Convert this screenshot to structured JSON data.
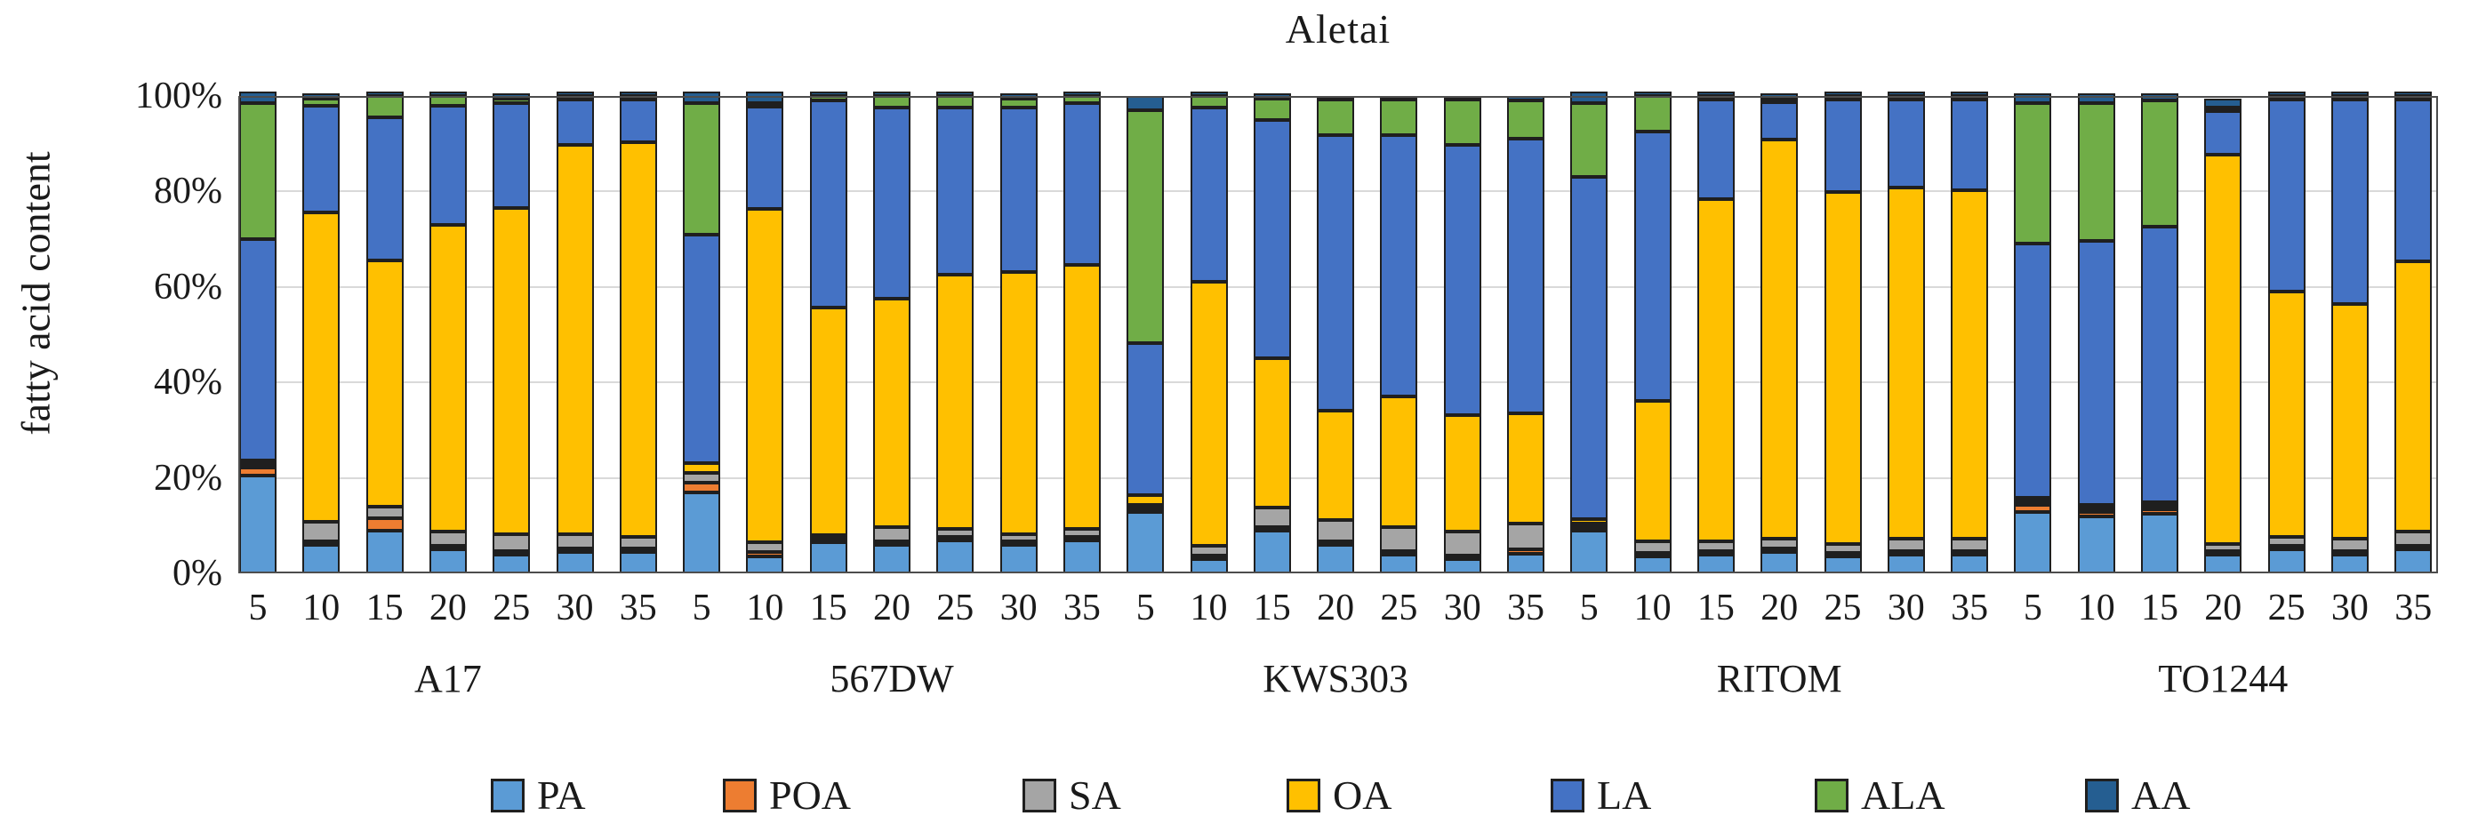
{
  "chart_data": {
    "type": "bar",
    "stacked": true,
    "percent_stacked": true,
    "title": "Aletai",
    "xlabel": "",
    "ylabel": "fatty acid content",
    "ylim": [
      0,
      100
    ],
    "y_ticks": [
      0,
      20,
      40,
      60,
      80,
      100
    ],
    "y_tick_labels": [
      "0%",
      "20%",
      "40%",
      "60%",
      "80%",
      "100%"
    ],
    "grid": true,
    "legend_position": "bottom",
    "groups": [
      {
        "label": "A17",
        "days": [
          "5",
          "10",
          "15",
          "20",
          "25",
          "30",
          "35"
        ]
      },
      {
        "label": "567DW",
        "days": [
          "5",
          "10",
          "15",
          "20",
          "25",
          "30",
          "35"
        ]
      },
      {
        "label": "KWS303",
        "days": [
          "5",
          "10",
          "15",
          "20",
          "25",
          "30",
          "35"
        ]
      },
      {
        "label": "RITOM",
        "days": [
          "5",
          "10",
          "15",
          "20",
          "25",
          "30",
          "35"
        ]
      },
      {
        "label": "TO1244",
        "days": [
          "5",
          "10",
          "15",
          "20",
          "25",
          "30",
          "35"
        ]
      }
    ],
    "series": [
      {
        "name": "PA",
        "color": "#5B9BD5",
        "values": [
          20.5,
          6,
          9,
          5,
          4,
          4.5,
          4.5,
          17,
          3.5,
          6.5,
          6,
          7,
          6,
          7,
          13,
          3,
          9,
          6,
          4,
          3,
          4,
          9,
          3.5,
          4,
          4.5,
          3.5,
          4,
          4,
          13,
          12,
          12.5,
          4,
          5,
          4,
          5
        ]
      },
      {
        "name": "POA",
        "color": "#ED7D31",
        "values": [
          1.7,
          0.5,
          2.5,
          0.5,
          0.5,
          0.5,
          0.5,
          2,
          1,
          0.5,
          0.5,
          0.5,
          0.5,
          0.5,
          0.5,
          0.5,
          0.5,
          0.5,
          0.5,
          0.5,
          1,
          0.5,
          0.5,
          0.5,
          0.5,
          0.5,
          0.5,
          0.5,
          1.5,
          1,
          1,
          0.5,
          0.5,
          0.5,
          0.5
        ]
      },
      {
        "name": "SA",
        "color": "#A5A5A5",
        "values": [
          0.5,
          4,
          2.5,
          3,
          3.5,
          3,
          2.5,
          2,
          2,
          0.5,
          3,
          1.5,
          1.5,
          1.5,
          0.5,
          2,
          4,
          4.5,
          5,
          5,
          5.5,
          0.5,
          2.5,
          2,
          2,
          2,
          2.5,
          2.5,
          0.5,
          0.5,
          0.5,
          1.5,
          2,
          2.5,
          3
        ]
      },
      {
        "name": "OA",
        "color": "#FFC000",
        "values": [
          0.8,
          65,
          51.5,
          64.5,
          68.5,
          82,
          83,
          2,
          70,
          48,
          48,
          53.5,
          55,
          55.5,
          2,
          55.5,
          31.5,
          23,
          27.5,
          24.5,
          23,
          1,
          29.5,
          72,
          84,
          74,
          74,
          73.5,
          0.5,
          0.5,
          0.5,
          82,
          51.5,
          49.5,
          57
        ]
      },
      {
        "name": "LA",
        "color": "#4472C4",
        "values": [
          46.5,
          22.5,
          30,
          25,
          22,
          9.5,
          9,
          48,
          21.5,
          43.5,
          40,
          35,
          34.5,
          34,
          32,
          36.5,
          50,
          58,
          55,
          57,
          57.5,
          72,
          56.5,
          21,
          8,
          19.5,
          18.5,
          19,
          53.5,
          55.5,
          58,
          9,
          40.5,
          43,
          34
        ]
      },
      {
        "name": "ALA",
        "color": "#70AD47",
        "values": [
          28.5,
          1.5,
          4.5,
          2,
          1,
          0.5,
          0.5,
          27.5,
          0.5,
          1,
          2.5,
          2.5,
          2,
          1.5,
          49,
          2.5,
          4.5,
          7.5,
          7.5,
          9.5,
          8,
          15.5,
          7.5,
          0.5,
          0.5,
          0.5,
          0.5,
          0.5,
          29.5,
          29,
          26.5,
          0.5,
          0.5,
          0.5,
          0.5
        ]
      },
      {
        "name": "AA",
        "color": "#255E91",
        "values": [
          2.5,
          1,
          1,
          1,
          1,
          1,
          1,
          2.5,
          2.5,
          1,
          1,
          1,
          1,
          1,
          3,
          1,
          1,
          0.5,
          0.5,
          0.5,
          1,
          2.5,
          1,
          1,
          1,
          1,
          1,
          1,
          2,
          2,
          1.5,
          2,
          1,
          1,
          1
        ]
      }
    ]
  }
}
